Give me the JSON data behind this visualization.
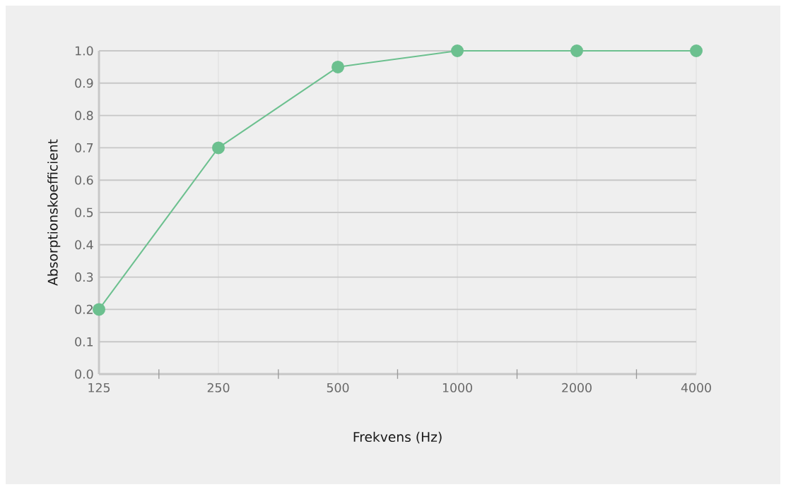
{
  "chart_data": {
    "type": "line",
    "xlabel": "Frekvens (Hz)",
    "ylabel": "Absorptionskoefficient",
    "x": [
      125,
      250,
      500,
      1000,
      2000,
      4000
    ],
    "series": [
      {
        "color": "#6cc08f",
        "values": [
          0.2,
          0.7,
          0.95,
          1.0,
          1.0,
          1.0
        ]
      }
    ],
    "log": "x",
    "xlim": [
      125,
      4000
    ],
    "xticks": [
      125,
      250,
      500,
      1000,
      2000,
      4000,
      {
        "value": 177,
        "label": null
      },
      {
        "value": 354,
        "label": null
      },
      {
        "value": 707,
        "label": null
      },
      {
        "value": 1414,
        "label": null
      },
      {
        "value": 2828,
        "label": null
      }
    ],
    "ylim": [
      0,
      1
    ],
    "yticks": [
      {
        "value": 0,
        "label": "0.0"
      },
      0.1,
      0.2,
      0.3,
      0.4,
      0.5,
      0.6,
      0.7,
      0.8,
      0.9,
      {
        "value": 1,
        "label": "1.0"
      }
    ],
    "grid": true,
    "marker": "circle",
    "line_style": "solid"
  }
}
